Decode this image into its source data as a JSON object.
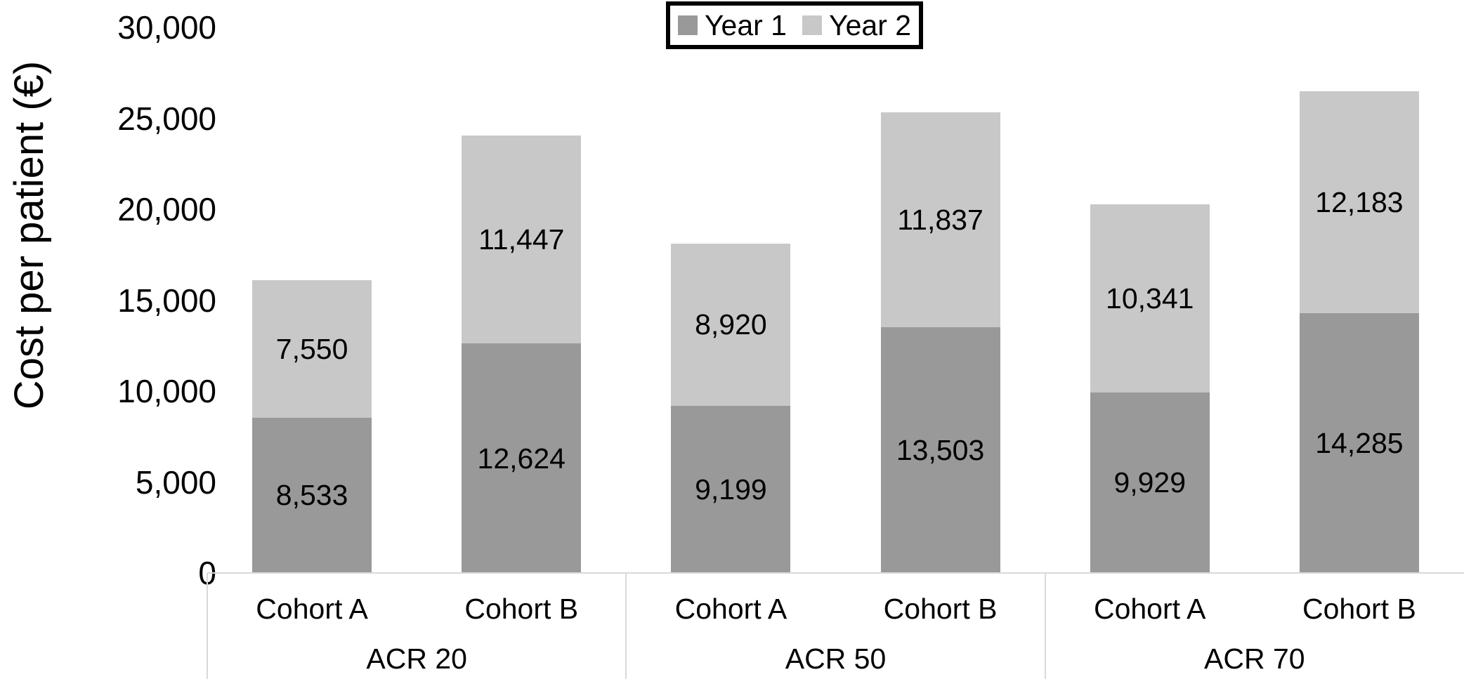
{
  "chart_data": {
    "type": "bar",
    "stacked": true,
    "ylabel": "Cost per patient (€)",
    "xlabel": "",
    "ylim": [
      0,
      30000
    ],
    "ytick_step": 5000,
    "ytick_labels": [
      "0",
      "5,000",
      "10,000",
      "15,000",
      "20,000",
      "25,000",
      "30,000"
    ],
    "grid": false,
    "legend_position": "top-center",
    "groups": [
      "ACR 20",
      "ACR 50",
      "ACR 70"
    ],
    "categories": [
      "Cohort A",
      "Cohort B",
      "Cohort A",
      "Cohort B",
      "Cohort A",
      "Cohort B"
    ],
    "series": [
      {
        "name": "Year 1",
        "color": "#999999",
        "values": [
          8533,
          12624,
          9199,
          13503,
          9929,
          14285
        ],
        "labels": [
          "8,533",
          "12,624",
          "9,199",
          "13,503",
          "9,929",
          "14,285"
        ]
      },
      {
        "name": "Year 2",
        "color": "#c8c8c8",
        "values": [
          7550,
          11447,
          8920,
          11837,
          10341,
          12183
        ],
        "labels": [
          "7,550",
          "11,447",
          "8,920",
          "11,837",
          "10,341",
          "12,183"
        ]
      }
    ],
    "colors": {
      "axis_line": "#d9d9d9",
      "legend_border": "#000000",
      "text": "#000000"
    }
  }
}
